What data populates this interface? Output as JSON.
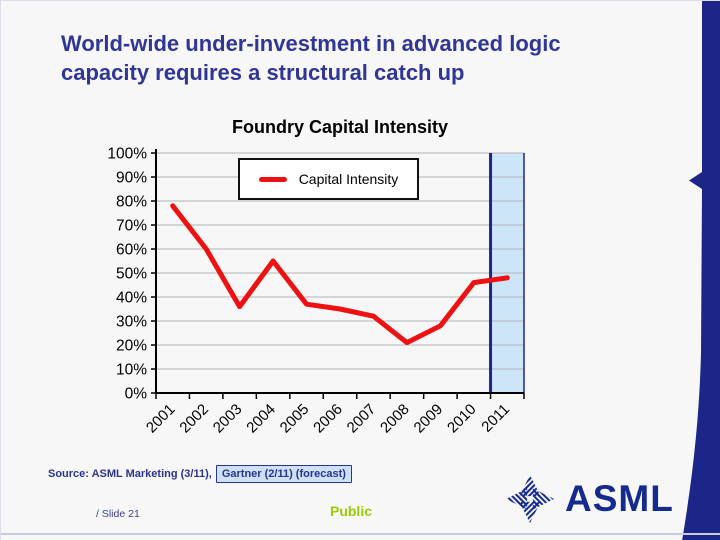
{
  "slide": {
    "title_line1": "World-wide under-investment in advanced logic",
    "title_line2": "capacity requires a structural catch up",
    "source_prefix": "Source: ASML Marketing (3/11),",
    "source_highlight": "Gartner (2/11) (forecast)",
    "slide_number": "/ Slide 21",
    "classification": "Public",
    "logo_text": "ASML"
  },
  "chart_data": {
    "type": "line",
    "title": "Foundry Capital Intensity",
    "categories": [
      "2001",
      "2002",
      "2003",
      "2004",
      "2005",
      "2006",
      "2007",
      "2008",
      "2009",
      "2010",
      "2011"
    ],
    "series": [
      {
        "name": "Capital Intensity",
        "values": [
          78,
          60,
          36,
          55,
          37,
          35,
          32,
          21,
          28,
          46,
          48
        ]
      }
    ],
    "ylim": [
      0,
      100
    ],
    "ytick_step": 10,
    "ytick_suffix": "%",
    "grid": true,
    "legend_position": "inside-top-center",
    "highlight_band": {
      "category": "2011",
      "meaning": "forecast",
      "fill": "#cce6f8",
      "border": "#1b2688"
    },
    "colors": {
      "line": "#ee1111",
      "grid": "#b3b3b3",
      "axis": "#000000"
    }
  },
  "colors": {
    "brand_navy": "#152a8e",
    "title_blue": "#2f3696",
    "public_green": "#99cc00",
    "source_box_fill": "#cde1f6"
  }
}
